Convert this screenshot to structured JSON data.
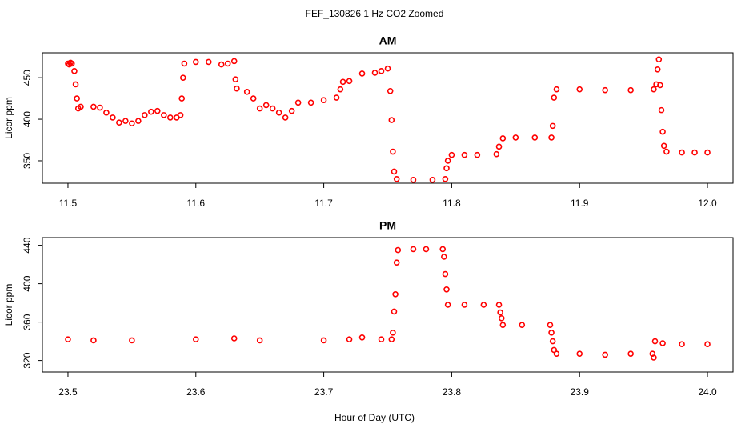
{
  "title": "FEF_130826  1 Hz CO2 Zoomed",
  "xlabel": "Hour of Day (UTC)",
  "chart_data": [
    {
      "type": "scatter",
      "title": "AM",
      "ylabel": "Licor ppm",
      "color": "#ff0000",
      "xlim": [
        11.48,
        12.02
      ],
      "ylim": [
        323,
        480
      ],
      "xticks": [
        {
          "value": 11.5,
          "label": "11.5"
        },
        {
          "value": 11.6,
          "label": "11.6"
        },
        {
          "value": 11.7,
          "label": "11.7"
        },
        {
          "value": 11.8,
          "label": "11.8"
        },
        {
          "value": 11.9,
          "label": "11.9"
        },
        {
          "value": 12,
          "label": "12.0"
        }
      ],
      "yticks": [
        350,
        400,
        450
      ],
      "x": [
        11.5,
        11.501,
        11.502,
        11.503,
        11.505,
        11.506,
        11.507,
        11.508,
        11.51,
        11.52,
        11.525,
        11.53,
        11.535,
        11.54,
        11.545,
        11.55,
        11.555,
        11.56,
        11.565,
        11.57,
        11.575,
        11.58,
        11.585,
        11.588,
        11.589,
        11.59,
        11.591,
        11.6,
        11.61,
        11.62,
        11.625,
        11.63,
        11.631,
        11.632,
        11.64,
        11.645,
        11.65,
        11.655,
        11.66,
        11.665,
        11.67,
        11.675,
        11.68,
        11.69,
        11.7,
        11.71,
        11.713,
        11.715,
        11.72,
        11.73,
        11.74,
        11.745,
        11.75,
        11.752,
        11.753,
        11.754,
        11.755,
        11.757,
        11.77,
        11.785,
        11.795,
        11.796,
        11.797,
        11.8,
        11.81,
        11.82,
        11.835,
        11.837,
        11.84,
        11.85,
        11.865,
        11.878,
        11.879,
        11.88,
        11.882,
        11.9,
        11.92,
        11.94,
        11.958,
        11.96,
        11.961,
        11.962,
        11.963,
        11.964,
        11.965,
        11.966,
        11.968,
        11.98,
        11.99,
        12.0
      ],
      "values": [
        467,
        466,
        468,
        467,
        458,
        442,
        425,
        413,
        415,
        415,
        414,
        408,
        402,
        396,
        398,
        395,
        398,
        405,
        409,
        410,
        405,
        402,
        402,
        405,
        425,
        450,
        467,
        469,
        469,
        466,
        467,
        470,
        448,
        437,
        433,
        425,
        413,
        417,
        413,
        408,
        402,
        410,
        420,
        420,
        423,
        426,
        436,
        445,
        446,
        455,
        456,
        458,
        461,
        434,
        399,
        361,
        337,
        328,
        327,
        327,
        328,
        341,
        350,
        357,
        357,
        357,
        358,
        367,
        377,
        378,
        378,
        378,
        392,
        426,
        436,
        436,
        435,
        435,
        436,
        442,
        460,
        472,
        441,
        411,
        385,
        368,
        361,
        360,
        360,
        360
      ]
    },
    {
      "type": "scatter",
      "title": "PM",
      "ylabel": "Licor ppm",
      "color": "#ff0000",
      "xlim": [
        23.48,
        24.02
      ],
      "ylim": [
        308,
        448
      ],
      "xticks": [
        {
          "value": 23.5,
          "label": "23.5"
        },
        {
          "value": 23.6,
          "label": "23.6"
        },
        {
          "value": 23.7,
          "label": "23.7"
        },
        {
          "value": 23.8,
          "label": "23.8"
        },
        {
          "value": 23.9,
          "label": "23.9"
        },
        {
          "value": 24,
          "label": "24.0"
        }
      ],
      "yticks": [
        320,
        360,
        400,
        440
      ],
      "x": [
        23.5,
        23.52,
        23.55,
        23.6,
        23.63,
        23.65,
        23.7,
        23.72,
        23.73,
        23.745,
        23.753,
        23.754,
        23.755,
        23.756,
        23.757,
        23.758,
        23.77,
        23.78,
        23.793,
        23.794,
        23.795,
        23.796,
        23.797,
        23.81,
        23.825,
        23.837,
        23.838,
        23.839,
        23.84,
        23.855,
        23.877,
        23.878,
        23.879,
        23.88,
        23.882,
        23.9,
        23.92,
        23.94,
        23.957,
        23.958,
        23.959,
        23.965,
        23.98,
        24.0
      ],
      "values": [
        342,
        341,
        341,
        342,
        343,
        341,
        341,
        342,
        344,
        342,
        342,
        349,
        371,
        389,
        422,
        435,
        436,
        436,
        436,
        428,
        410,
        394,
        378,
        378,
        378,
        378,
        370,
        364,
        357,
        357,
        357,
        349,
        340,
        331,
        327,
        327,
        326,
        327,
        327,
        323,
        340,
        338,
        337,
        337
      ]
    }
  ]
}
